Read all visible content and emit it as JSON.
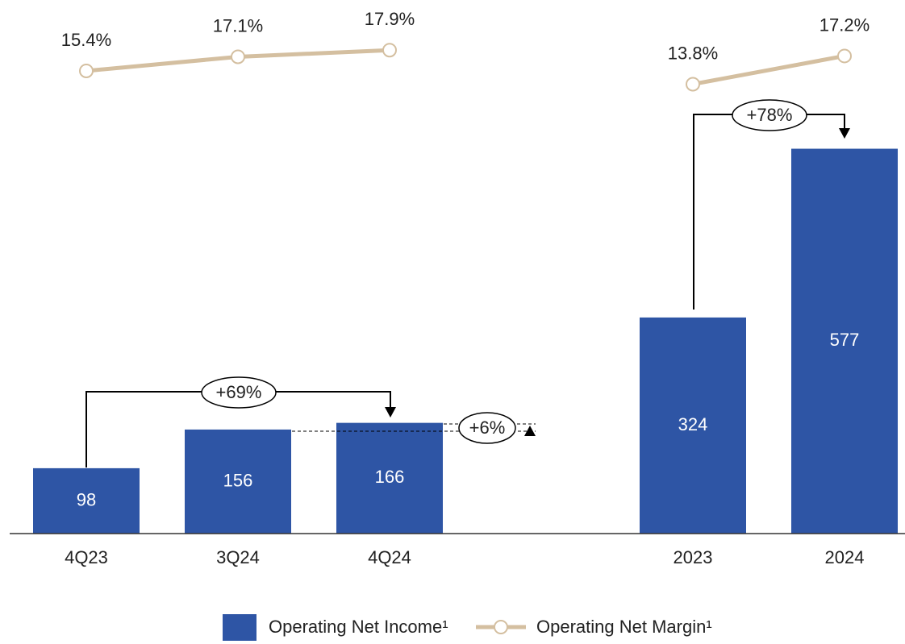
{
  "chart_data": {
    "type": "bar_line",
    "categories": [
      "4Q23",
      "3Q24",
      "4Q24",
      null,
      "2023",
      "2024"
    ],
    "series": [
      {
        "name": "Operating Net Income¹",
        "color": "#2e55a5",
        "values": [
          98,
          156,
          166,
          null,
          324,
          577
        ]
      },
      {
        "name": "Operating Net Margin¹",
        "color": "#d4bfa0",
        "axis": "y2",
        "values": [
          15.4,
          17.1,
          17.9,
          null,
          13.8,
          17.2
        ],
        "value_labels": [
          "15.4%",
          "17.1%",
          "17.9%",
          null,
          "13.8%",
          "17.2%"
        ]
      }
    ],
    "ylim": [
      0,
      800
    ],
    "y2lim": [
      12,
      22
    ],
    "annotations": [
      "+69%",
      "+6%",
      "+78%"
    ]
  }
}
